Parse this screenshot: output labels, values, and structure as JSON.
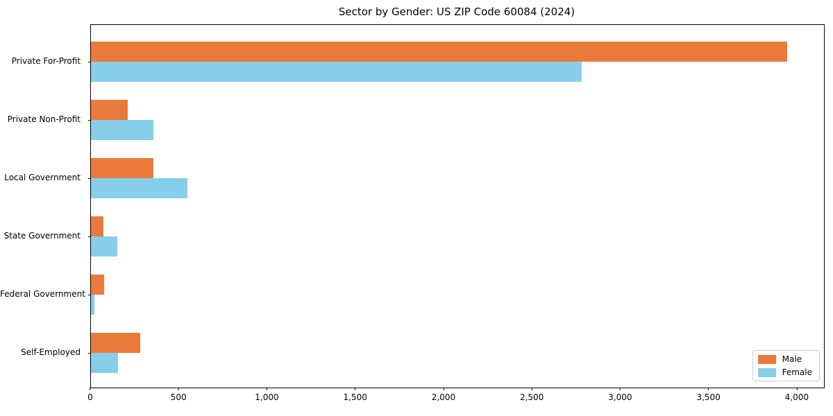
{
  "title": "Sector by Gender: US ZIP Code 60084 (2024)",
  "colors": {
    "male": "#EA7A3C",
    "female": "#87CEEB",
    "axis": "#000000",
    "legend_border": "#CCCCCC",
    "background": "#FFFFFF"
  },
  "legend": {
    "position": "lower right",
    "entries": [
      "Male",
      "Female"
    ]
  },
  "chart_data": {
    "type": "bar",
    "orientation": "horizontal",
    "title": "Sector by Gender: US ZIP Code 60084 (2024)",
    "xlabel": "",
    "ylabel": "",
    "grid": false,
    "categories": [
      "Private For-Profit",
      "Private Non-Profit",
      "Local Government",
      "State Government",
      "Federal Government",
      "Self-Employed"
    ],
    "series": [
      {
        "name": "Male",
        "color": "#EA7A3C",
        "values": [
          3940,
          210,
          355,
          70,
          75,
          280
        ]
      },
      {
        "name": "Female",
        "color": "#87CEEB",
        "values": [
          2780,
          355,
          545,
          150,
          20,
          155
        ]
      }
    ],
    "xlim": [
      0,
      4150
    ],
    "xticks": [
      0,
      500,
      1000,
      1500,
      2000,
      2500,
      3000,
      3500,
      4000
    ],
    "xtick_labels": [
      "0",
      "500",
      "1,000",
      "1,500",
      "2,000",
      "2,500",
      "3,000",
      "3,500",
      "4,000"
    ],
    "legend_position": "lower right"
  }
}
